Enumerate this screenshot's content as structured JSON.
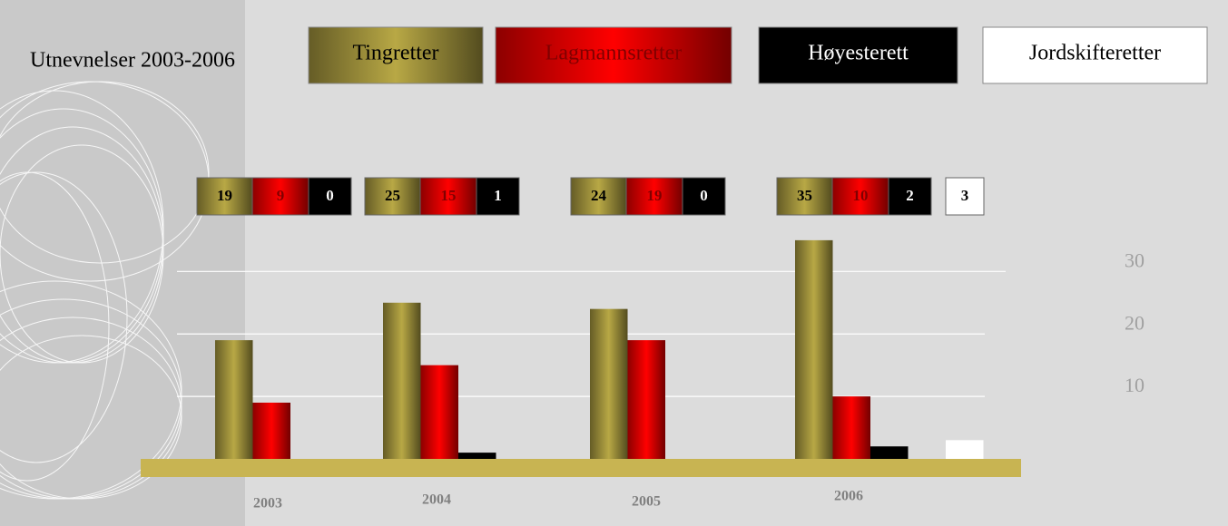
{
  "chart_data": {
    "type": "bar",
    "title": "Utnevnelser 2003-2006",
    "categories": [
      "2003",
      "2004",
      "2005",
      "2006"
    ],
    "series": [
      {
        "name": "Tingretter",
        "color": "#b8a845",
        "values": [
          19,
          25,
          24,
          35
        ]
      },
      {
        "name": "Lagmannsretter",
        "color": "#ff0000",
        "values": [
          9,
          15,
          19,
          10
        ]
      },
      {
        "name": "Høyesterett",
        "color": "#000000",
        "values": [
          0,
          1,
          0,
          2
        ]
      },
      {
        "name": "Jordskifteretter",
        "color": "#ffffff",
        "values": [
          null,
          null,
          null,
          3
        ]
      }
    ],
    "ylim": [
      0,
      36
    ],
    "yticks": [
      10,
      20,
      30
    ],
    "grid": true
  }
}
